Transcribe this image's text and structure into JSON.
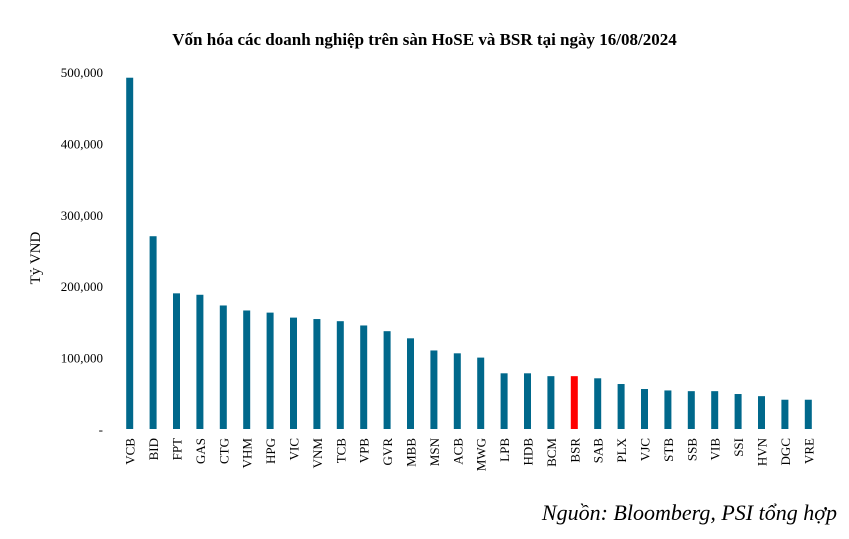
{
  "chart_data": {
    "type": "bar",
    "title": "Vốn hóa các doanh nghiệp trên sàn HoSE và BSR tại ngày 16/08/2024",
    "xlabel": "",
    "ylabel": "Tỷ VND",
    "ylim": [
      0,
      500000
    ],
    "yticks": [
      {
        "value": 0,
        "label": "-"
      },
      {
        "value": 100000,
        "label": "100,000"
      },
      {
        "value": 200000,
        "label": "200,000"
      },
      {
        "value": 300000,
        "label": "300,000"
      },
      {
        "value": 400000,
        "label": "400,000"
      },
      {
        "value": 500000,
        "label": "500,000"
      }
    ],
    "categories": [
      "VCB",
      "BID",
      "FPT",
      "GAS",
      "CTG",
      "VHM",
      "HPG",
      "VIC",
      "VNM",
      "TCB",
      "VPB",
      "GVR",
      "MBB",
      "MSN",
      "ACB",
      "MWG",
      "LPB",
      "HDB",
      "BCM",
      "BSR",
      "SAB",
      "PLX",
      "VJC",
      "STB",
      "SSB",
      "VIB",
      "SSI",
      "HVN",
      "DGC",
      "VRE"
    ],
    "values": [
      492000,
      270000,
      190000,
      188000,
      173000,
      166000,
      163000,
      156000,
      154000,
      151000,
      145000,
      137000,
      127000,
      110000,
      106000,
      100000,
      78000,
      78000,
      74000,
      74000,
      71000,
      63000,
      56000,
      54000,
      53000,
      53000,
      49000,
      46000,
      41000,
      41000
    ],
    "highlight": "BSR",
    "bar_color": "#00688B",
    "highlight_color": "#FF0000",
    "grid": false,
    "legend": "none"
  },
  "source_note": "Nguồn: Bloomberg, PSI tổng hợp"
}
